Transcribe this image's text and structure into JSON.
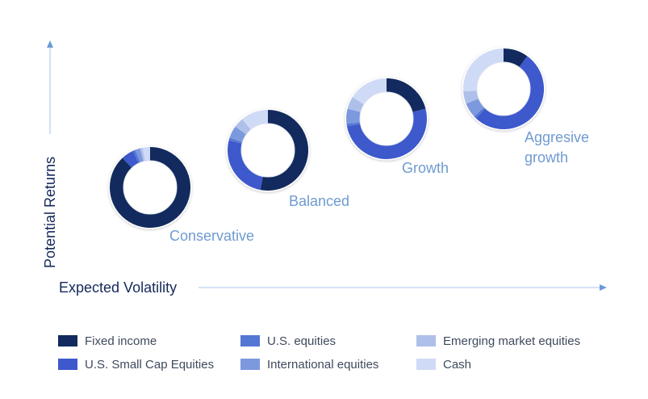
{
  "chart_data": {
    "type": "donut",
    "xlabel": "Expected Volatility",
    "ylabel": "Potential Returns",
    "legend_position": "bottom",
    "grid": false,
    "series_colors": [
      "#132a5e",
      "#3d59cc",
      "#5577d4",
      "#7c99de",
      "#aebfe9",
      "#cfdaf6"
    ],
    "legend": [
      {
        "name": "Fixed income",
        "color": "#132a5e"
      },
      {
        "name": "U.S. Small Cap Equities",
        "color": "#3d59cc"
      },
      {
        "name": "U.S. equities",
        "color": "#5577d4"
      },
      {
        "name": "International equities",
        "color": "#7c99de"
      },
      {
        "name": "Emerging market equities",
        "color": "#aebfe9"
      },
      {
        "name": "Cash",
        "color": "#cfdaf6"
      }
    ],
    "portfolios": [
      {
        "label": "Conservative",
        "values": [
          88,
          5,
          1,
          2,
          1,
          3
        ]
      },
      {
        "label": "Balanced",
        "values": [
          53,
          26,
          1,
          5,
          4,
          11
        ]
      },
      {
        "label": "Growth",
        "values": [
          21,
          51,
          1,
          6,
          5,
          16
        ]
      },
      {
        "label": "Aggresive growth",
        "values": [
          10,
          52,
          1,
          6,
          5,
          26
        ]
      }
    ]
  }
}
